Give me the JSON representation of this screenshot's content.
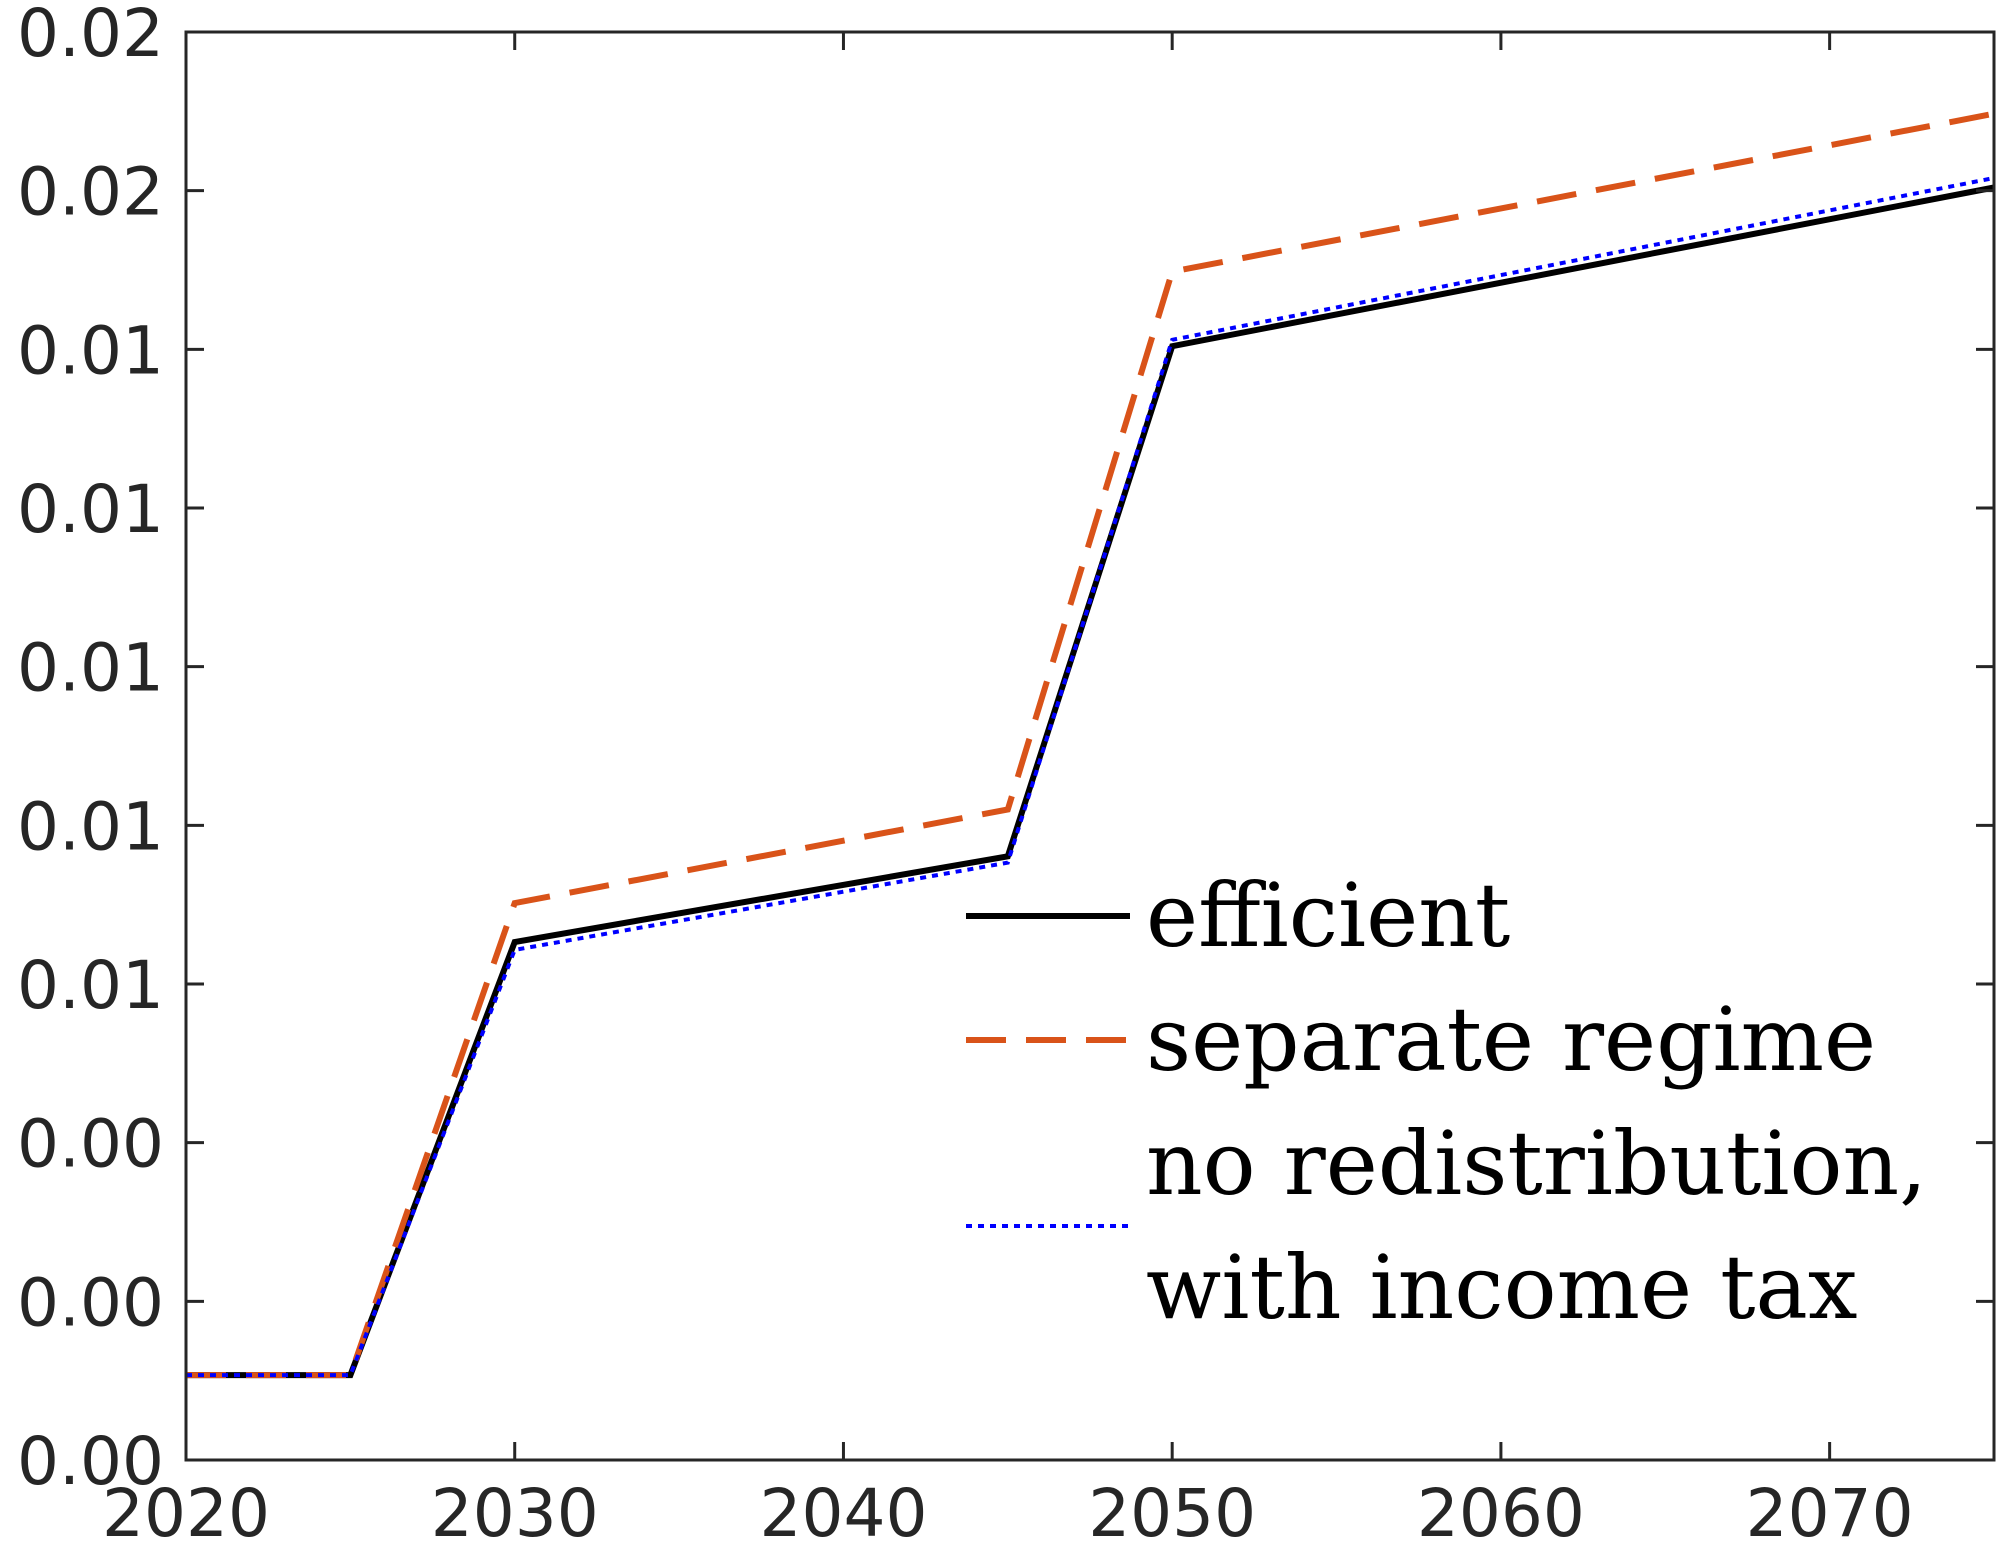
{
  "chart_data": {
    "type": "line",
    "title": "",
    "xlabel": "",
    "ylabel": "",
    "xlim": [
      2020,
      2075
    ],
    "ylim": [
      0,
      0.018
    ],
    "x_ticks": [
      2020,
      2030,
      2040,
      2050,
      2060,
      2070
    ],
    "x_tick_labels": [
      "2020",
      "2030",
      "2040",
      "2050",
      "2060",
      "2070"
    ],
    "y_ticks": [
      0,
      0.002,
      0.004,
      0.006,
      0.008,
      0.01,
      0.012,
      0.014,
      0.016,
      0.018
    ],
    "y_tick_labels": [
      "0.00",
      "0.00",
      "0.00",
      "0.01",
      "0.01",
      "0.01",
      "0.01",
      "0.01",
      "0.02",
      "0.02"
    ],
    "grid": false,
    "legend_position": "lower-right",
    "series": [
      {
        "name": "efficient",
        "label_lines": [
          "efficient"
        ],
        "color": "#000000",
        "style": "solid",
        "x": [
          2020,
          2025,
          2030,
          2045,
          2050,
          2075
        ],
        "y": [
          0.00107,
          0.00107,
          0.00653,
          0.00761,
          0.01404,
          0.01604
        ]
      },
      {
        "name": "separate regime",
        "label_lines": [
          "separate regime"
        ],
        "color": "#D95319",
        "style": "dashed",
        "x": [
          2020,
          2025,
          2030,
          2045,
          2050,
          2075
        ],
        "y": [
          0.00107,
          0.00107,
          0.00702,
          0.0082,
          0.01498,
          0.01697
        ]
      },
      {
        "name": "no redistribution, with income tax",
        "label_lines": [
          "no redistribution,",
          "with income tax"
        ],
        "color": "#0000FF",
        "style": "dotted",
        "x": [
          2020,
          2025,
          2030,
          2045,
          2050,
          2075
        ],
        "y": [
          0.00107,
          0.00107,
          0.00643,
          0.00753,
          0.01412,
          0.01616
        ]
      }
    ]
  }
}
